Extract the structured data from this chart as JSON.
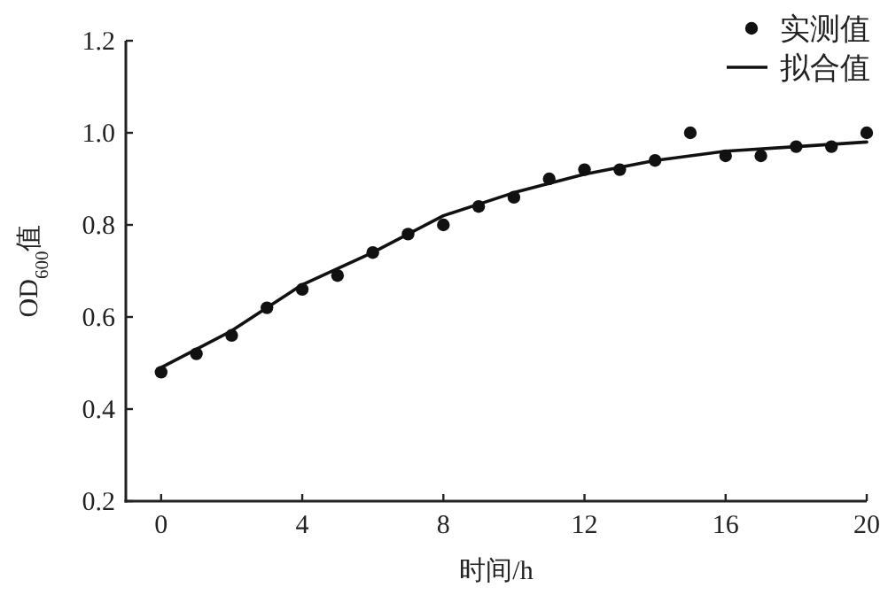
{
  "chart_data": {
    "type": "scatter",
    "xlabel": "时间/h",
    "ylabel": "OD$_{600}$值",
    "xlim": [
      -1,
      20
    ],
    "ylim": [
      0.2,
      1.2
    ],
    "xticks": [
      0,
      4,
      8,
      12,
      16,
      20
    ],
    "yticks": [
      {
        "value": 0.2,
        "label": "0.2"
      },
      {
        "value": 0.4,
        "label": "0.4"
      },
      {
        "value": 0.6,
        "label": "0.6"
      },
      {
        "value": 0.8,
        "label": "0.8"
      },
      {
        "value": 1.0,
        "label": "1.0"
      },
      {
        "value": 1.2,
        "label": "1.2"
      }
    ],
    "grid": false,
    "legend": "top right",
    "series": [
      {
        "name": "实测值",
        "marker": "circle",
        "color": "#111111",
        "x": [
          0,
          1,
          2,
          3,
          4,
          5,
          6,
          7,
          8,
          9,
          10,
          11,
          12,
          13,
          14,
          15,
          16,
          17,
          18,
          19,
          20
        ],
        "values": [
          0.48,
          0.52,
          0.56,
          0.62,
          0.66,
          0.69,
          0.74,
          0.78,
          0.8,
          0.84,
          0.86,
          0.9,
          0.92,
          0.92,
          0.94,
          1.0,
          0.95,
          0.95,
          0.97,
          0.97,
          1.0
        ]
      },
      {
        "name": "拟合值",
        "type": "line",
        "marker": "none",
        "line_style": "solid",
        "color": "#111111",
        "x": [
          0,
          2,
          4,
          6,
          8,
          10,
          12,
          14,
          16,
          18,
          20
        ],
        "values": [
          0.49,
          0.57,
          0.67,
          0.74,
          0.82,
          0.87,
          0.91,
          0.94,
          0.96,
          0.97,
          0.98
        ]
      }
    ]
  }
}
